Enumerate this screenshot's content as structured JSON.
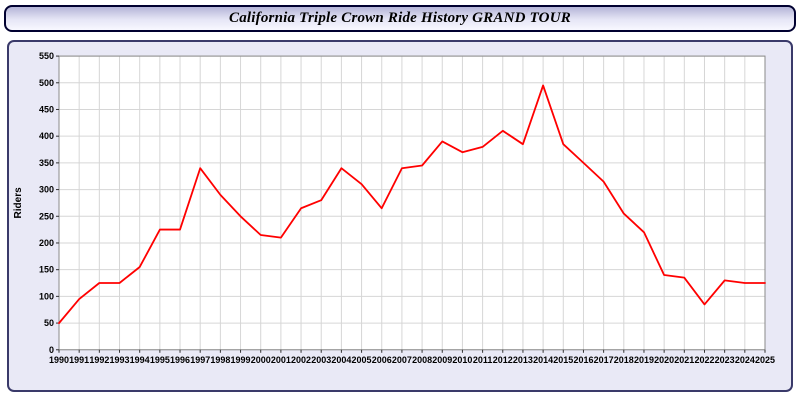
{
  "header": {
    "title": "California Triple Crown Ride History GRAND TOUR"
  },
  "colors": {
    "line": "#ff0000",
    "panel_background": "#e9e9f6",
    "plot_background": "#ffffff",
    "gridline": "#d6d6d6",
    "border": "#3a3a6a"
  },
  "chart_data": {
    "type": "line",
    "title": "California Triple Crown Ride History GRAND TOUR",
    "xlabel": "",
    "ylabel": "Riders",
    "ylim": [
      0,
      550
    ],
    "ytick_step": 50,
    "grid": true,
    "legend": false,
    "x": [
      1990,
      1991,
      1992,
      1993,
      1994,
      1995,
      1996,
      1997,
      1998,
      1999,
      2000,
      2001,
      2002,
      2003,
      2004,
      2005,
      2006,
      2007,
      2008,
      2009,
      2010,
      2011,
      2012,
      2013,
      2014,
      2015,
      2016,
      2017,
      2018,
      2019,
      2020,
      2021,
      2022,
      2023,
      2024,
      2025
    ],
    "series": [
      {
        "name": "Riders",
        "color": "#ff0000",
        "values": [
          50,
          95,
          125,
          125,
          155,
          225,
          225,
          340,
          290,
          250,
          215,
          210,
          265,
          280,
          340,
          310,
          265,
          340,
          345,
          390,
          370,
          380,
          410,
          385,
          495,
          385,
          350,
          315,
          255,
          220,
          140,
          135,
          85,
          130,
          125,
          125
        ]
      }
    ]
  }
}
